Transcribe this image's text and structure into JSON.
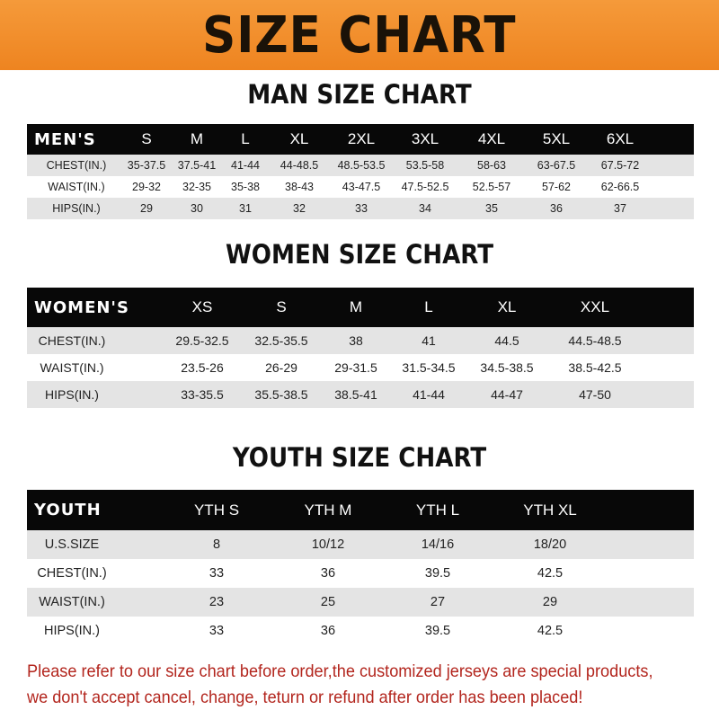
{
  "title": "SIZE CHART",
  "men": {
    "title": "MAN SIZE CHART",
    "headers": [
      "MEN'S",
      "S",
      "M",
      "L",
      "XL",
      "2XL",
      "3XL",
      "4XL",
      "5XL",
      "6XL"
    ],
    "rows": [
      [
        "CHEST(IN.)",
        "35-37.5",
        "37.5-41",
        "41-44",
        "44-48.5",
        "48.5-53.5",
        "53.5-58",
        "58-63",
        "63-67.5",
        "67.5-72"
      ],
      [
        "WAIST(IN.)",
        "29-32",
        "32-35",
        "35-38",
        "38-43",
        "43-47.5",
        "47.5-52.5",
        "52.5-57",
        "57-62",
        "62-66.5"
      ],
      [
        "HIPS(IN.)",
        "29",
        "30",
        "31",
        "32",
        "33",
        "34",
        "35",
        "36",
        "37"
      ]
    ]
  },
  "women": {
    "title": "WOMEN SIZE CHART",
    "headers": [
      "WOMEN'S",
      "XS",
      "S",
      "M",
      "L",
      "XL",
      "XXL"
    ],
    "rows": [
      [
        "CHEST(IN.)",
        "29.5-32.5",
        "32.5-35.5",
        "38",
        "41",
        "44.5",
        "44.5-48.5"
      ],
      [
        "WAIST(IN.)",
        "23.5-26",
        "26-29",
        "29-31.5",
        "31.5-34.5",
        "34.5-38.5",
        "38.5-42.5"
      ],
      [
        "HIPS(IN.)",
        "33-35.5",
        "35.5-38.5",
        "38.5-41",
        "41-44",
        "44-47",
        "47-50"
      ]
    ]
  },
  "youth": {
    "title": "YOUTH SIZE CHART",
    "headers": [
      "YOUTH",
      "YTH S",
      "YTH M",
      "YTH L",
      "YTH XL"
    ],
    "rows": [
      [
        "U.S.SIZE",
        "8",
        "10/12",
        "14/16",
        "18/20"
      ],
      [
        "CHEST(IN.)",
        "33",
        "36",
        "39.5",
        "42.5"
      ],
      [
        "WAIST(IN.)",
        "23",
        "25",
        "27",
        "29"
      ],
      [
        "HIPS(IN.)",
        "33",
        "36",
        "39.5",
        "42.5"
      ]
    ]
  },
  "note": {
    "line1": "Please refer to our size chart before order,the customized jerseys are special products,",
    "line2": "we don't accept cancel, change, teturn or refund after order has been placed!"
  },
  "colors": {
    "banner": "#ee8420",
    "header_row": "#080808",
    "stripe": "#e4e4e4",
    "note": "#b3261e"
  }
}
